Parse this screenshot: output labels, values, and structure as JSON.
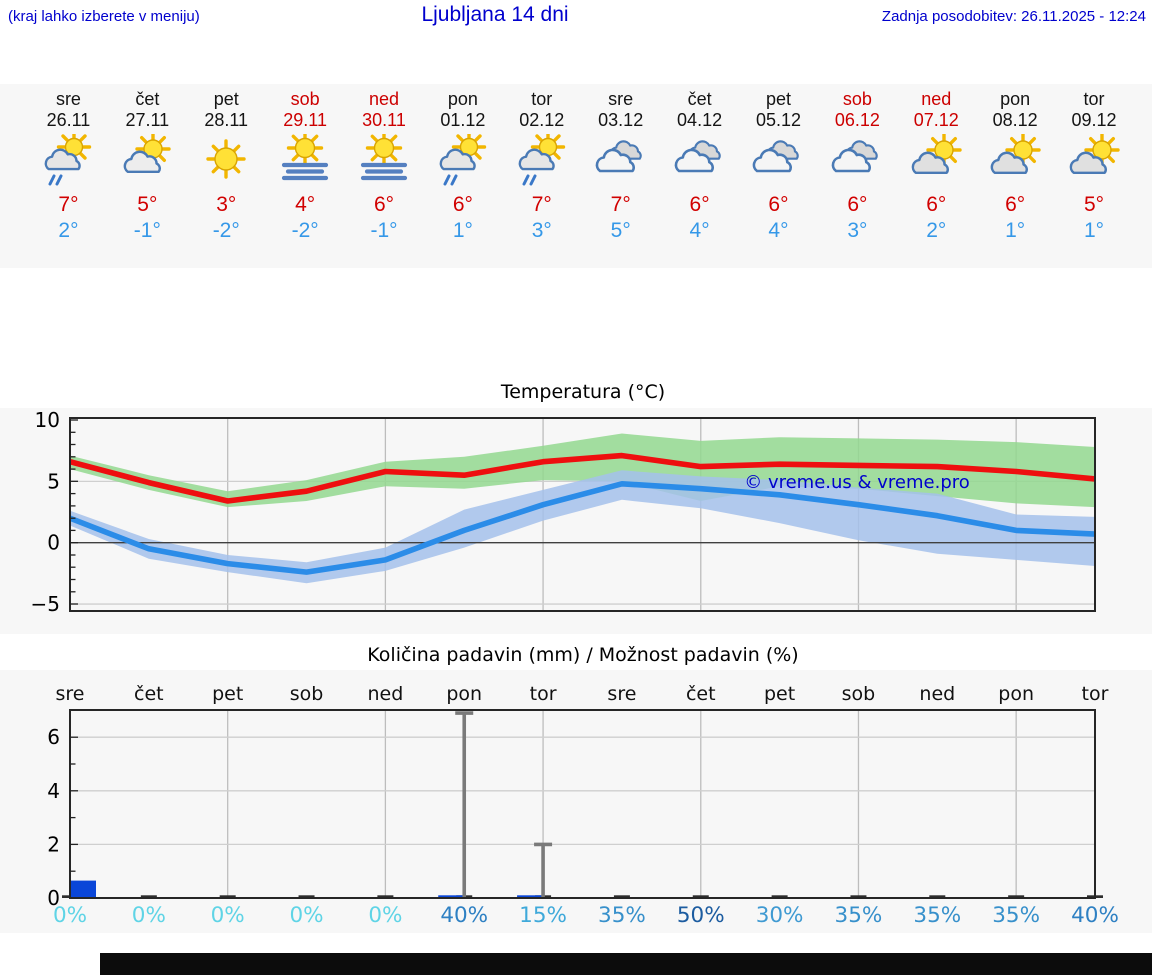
{
  "header": {
    "menu_hint": "(kraj lahko izberete v meniju)",
    "title": "Ljubljana 14 dni",
    "last_update": "Zadnja posodobitev: 26.11.2025 - 12:24"
  },
  "colors": {
    "link_blue": "#0000cd",
    "weekend_red": "#cc0000",
    "high_red": "#d10000",
    "low_blue": "#3598e8",
    "temp_line_red": "#ee0f0f",
    "temp_band_green": "#93d88f",
    "temp_line_blue": "#2b8ce8",
    "temp_band_blue": "#a5c1eb",
    "precip_bar_blue": "#0a46d8",
    "errorbar_gray": "#7a7a7a",
    "section_bg": "#f7f7f7",
    "grid_gray": "#bdbdbd",
    "axis_dark": "#262626",
    "chance_colors": {
      "0": "#5fd4e6",
      "15": "#3fa9da",
      "30": "#3f9ad2",
      "35": "#3790cb",
      "40": "#2e80c3",
      "50": "#1c5ca0"
    }
  },
  "forecast": {
    "days": [
      {
        "name": "sre",
        "date": "26.11",
        "weekend": false,
        "icon": "sun-cloud-rain",
        "high": "7°",
        "low": "2°"
      },
      {
        "name": "čet",
        "date": "27.11",
        "weekend": false,
        "icon": "sun-cloud",
        "high": "5°",
        "low": "-1°"
      },
      {
        "name": "pet",
        "date": "28.11",
        "weekend": false,
        "icon": "sun",
        "high": "3°",
        "low": "-2°"
      },
      {
        "name": "sob",
        "date": "29.11",
        "weekend": true,
        "icon": "sun-fog",
        "high": "4°",
        "low": "-2°"
      },
      {
        "name": "ned",
        "date": "30.11",
        "weekend": true,
        "icon": "sun-fog",
        "high": "6°",
        "low": "-1°"
      },
      {
        "name": "pon",
        "date": "01.12",
        "weekend": false,
        "icon": "sun-cloud-rain",
        "high": "6°",
        "low": "1°"
      },
      {
        "name": "tor",
        "date": "02.12",
        "weekend": false,
        "icon": "sun-cloud-rain",
        "high": "7°",
        "low": "3°"
      },
      {
        "name": "sre",
        "date": "03.12",
        "weekend": false,
        "icon": "cloudy",
        "high": "7°",
        "low": "5°"
      },
      {
        "name": "čet",
        "date": "04.12",
        "weekend": false,
        "icon": "cloudy",
        "high": "6°",
        "low": "4°"
      },
      {
        "name": "pet",
        "date": "05.12",
        "weekend": false,
        "icon": "cloudy",
        "high": "6°",
        "low": "4°"
      },
      {
        "name": "sob",
        "date": "06.12",
        "weekend": true,
        "icon": "cloudy",
        "high": "6°",
        "low": "3°"
      },
      {
        "name": "ned",
        "date": "07.12",
        "weekend": true,
        "icon": "cloud-sun",
        "high": "6°",
        "low": "2°"
      },
      {
        "name": "pon",
        "date": "08.12",
        "weekend": false,
        "icon": "cloud-sun",
        "high": "6°",
        "low": "1°"
      },
      {
        "name": "tor",
        "date": "09.12",
        "weekend": false,
        "icon": "cloud-sun",
        "high": "5°",
        "low": "1°"
      }
    ]
  },
  "temp_chart": {
    "title": "Temperatura (°C)",
    "copyright": "© vreme.us & vreme.pro",
    "ytick_labels": [
      "10",
      "5",
      "0",
      "−5"
    ]
  },
  "precip_chart": {
    "title": "Količina padavin (mm) / Možnost padavin (%)",
    "ytick_labels": [
      "0",
      "2",
      "4",
      "6"
    ]
  },
  "chart_data": [
    {
      "type": "line",
      "title": "Temperatura (°C)",
      "x_categories": [
        "26.11",
        "27.11",
        "28.11",
        "29.11",
        "30.11",
        "01.12",
        "02.12",
        "03.12",
        "04.12",
        "05.12",
        "06.12",
        "07.12",
        "08.12",
        "09.12"
      ],
      "ylabel": "°C",
      "ylim": [
        -5.6,
        10.2
      ],
      "yticks": [
        10,
        5,
        0,
        -5
      ],
      "grid": true,
      "legend_position": "none",
      "annotation": "© vreme.us & vreme.pro",
      "series": [
        {
          "name": "max temperature",
          "style": "red line",
          "values": [
            6.6,
            4.9,
            3.4,
            4.2,
            5.8,
            5.5,
            6.6,
            7.1,
            6.2,
            6.4,
            6.3,
            6.2,
            5.8,
            5.2
          ]
        },
        {
          "name": "min temperature",
          "style": "blue line",
          "values": [
            2.0,
            -0.5,
            -1.7,
            -2.4,
            -1.4,
            1.0,
            3.1,
            4.8,
            4.4,
            3.9,
            3.1,
            2.2,
            1.0,
            0.7
          ]
        },
        {
          "name": "max range upper",
          "style": "green band",
          "values": [
            7.1,
            5.5,
            4.2,
            5.1,
            6.6,
            7.0,
            7.9,
            8.9,
            8.3,
            8.6,
            8.5,
            8.4,
            8.2,
            7.8
          ]
        },
        {
          "name": "max range lower",
          "style": "green band",
          "values": [
            6.0,
            4.3,
            2.9,
            3.4,
            4.6,
            4.4,
            5.1,
            5.0,
            3.4,
            4.6,
            4.4,
            3.8,
            3.2,
            2.9
          ]
        },
        {
          "name": "min range upper",
          "style": "blue band",
          "values": [
            2.6,
            0.3,
            -1.0,
            -1.6,
            -0.4,
            2.7,
            4.3,
            5.9,
            5.4,
            5.1,
            4.5,
            4.0,
            2.3,
            2.1
          ]
        },
        {
          "name": "min range lower",
          "style": "blue band",
          "values": [
            1.4,
            -1.3,
            -2.4,
            -3.3,
            -2.3,
            -0.4,
            1.8,
            3.5,
            2.8,
            1.6,
            0.2,
            -0.9,
            -1.4,
            -1.9
          ]
        }
      ]
    },
    {
      "type": "bar",
      "title": "Količina padavin (mm) / Možnost padavin (%)",
      "categories": [
        "sre",
        "čet",
        "pet",
        "sob",
        "ned",
        "pon",
        "tor",
        "sre",
        "čet",
        "pet",
        "sob",
        "ned",
        "pon",
        "tor"
      ],
      "values": [
        0.65,
        0,
        0,
        0,
        0,
        0.1,
        0.1,
        0,
        0,
        0,
        0,
        0,
        0,
        0
      ],
      "error_bars": [
        {
          "category": "pon",
          "index": 5,
          "max_mm": 6.9
        },
        {
          "category": "tor",
          "index": 6,
          "max_mm": 2.0
        }
      ],
      "chance_percent": [
        0,
        0,
        0,
        0,
        0,
        40,
        15,
        35,
        50,
        30,
        35,
        35,
        35,
        40
      ],
      "chance_labels": [
        "0%",
        "0%",
        "0%",
        "0%",
        "0%",
        "40%",
        "15%",
        "35%",
        "50%",
        "30%",
        "35%",
        "35%",
        "35%",
        "40%"
      ],
      "ylabel": "mm",
      "ylim": [
        0,
        6.9
      ],
      "yticks": [
        0,
        2,
        4,
        6
      ],
      "grid": true
    }
  ]
}
